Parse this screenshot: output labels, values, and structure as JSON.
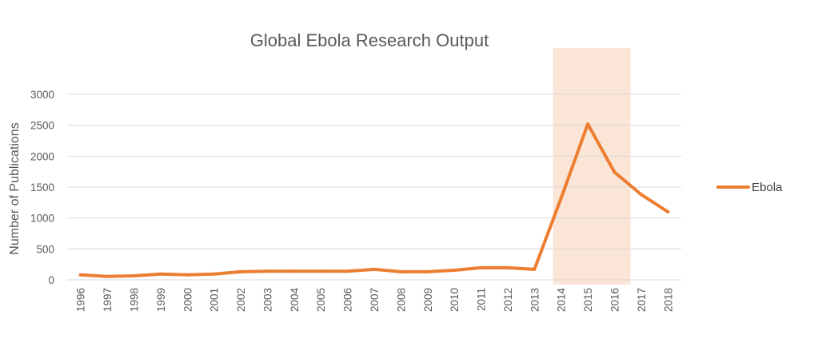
{
  "chart_data": {
    "type": "line",
    "title": "Global Ebola Research Output",
    "xlabel": "",
    "ylabel": "Number of Publications",
    "x": [
      "1996",
      "1997",
      "1998",
      "1999",
      "2000",
      "2001",
      "2002",
      "2003",
      "2004",
      "2005",
      "2006",
      "2007",
      "2008",
      "2009",
      "2010",
      "2011",
      "2012",
      "2013",
      "2014",
      "2015",
      "2016",
      "2017",
      "2018"
    ],
    "series": [
      {
        "name": "Ebola",
        "color": "#ED7D31",
        "values": [
          80,
          55,
          65,
          95,
          80,
          95,
          130,
          140,
          140,
          140,
          140,
          170,
          130,
          130,
          155,
          195,
          195,
          170,
          1320,
          2520,
          1740,
          1380,
          1100
        ]
      }
    ],
    "ylim": [
      0,
      3000
    ],
    "yticks": [
      "0",
      "500",
      "1000",
      "1500",
      "2000",
      "2500",
      "3000"
    ],
    "grid": true,
    "legend_position": "right",
    "highlight_range": {
      "from": "2014",
      "to": "2016",
      "color": "#FBE5D6"
    }
  }
}
